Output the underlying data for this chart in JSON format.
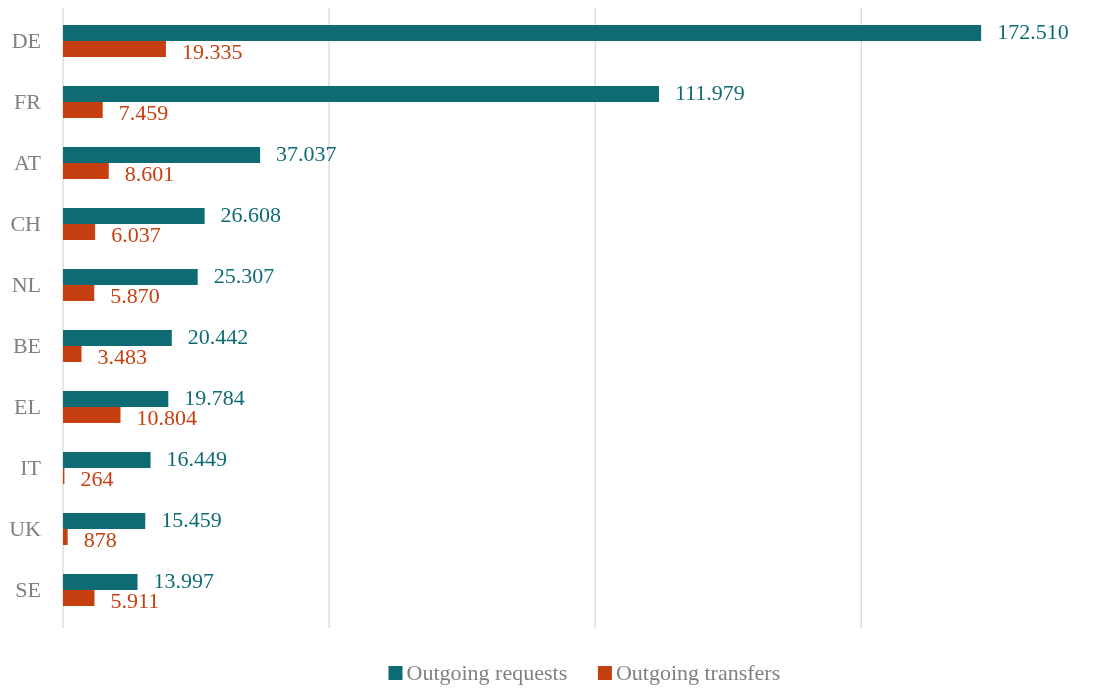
{
  "chart_data": {
    "type": "bar",
    "orientation": "horizontal",
    "categories": [
      "DE",
      "FR",
      "AT",
      "CH",
      "NL",
      "BE",
      "EL",
      "IT",
      "UK",
      "SE"
    ],
    "series": [
      {
        "name": "Outgoing requests",
        "color": "#0f6b73",
        "values": [
          172510,
          111979,
          37037,
          26608,
          25307,
          20442,
          19784,
          16449,
          15459,
          13997
        ],
        "value_labels": [
          "172.510",
          "111.979",
          "37.037",
          "26.608",
          "25.307",
          "20.442",
          "19.784",
          "16.449",
          "15.459",
          "13.997"
        ]
      },
      {
        "name": "Outgoing transfers",
        "color": "#c63f10",
        "values": [
          19335,
          7459,
          8601,
          6037,
          5870,
          3483,
          10804,
          264,
          878,
          5911
        ],
        "value_labels": [
          "19.335",
          "7.459",
          "8.601",
          "6.037",
          "5.870",
          "3.483",
          "10.804",
          "264",
          "878",
          "5.911"
        ]
      }
    ],
    "xticks": [
      {
        "value": 0,
        "label": null
      },
      {
        "value": 50000,
        "label": null
      },
      {
        "value": 100000,
        "label": null
      },
      {
        "value": 150000,
        "label": null
      }
    ],
    "tick_labels": "y",
    "grid": "x",
    "legend": "bottom"
  }
}
